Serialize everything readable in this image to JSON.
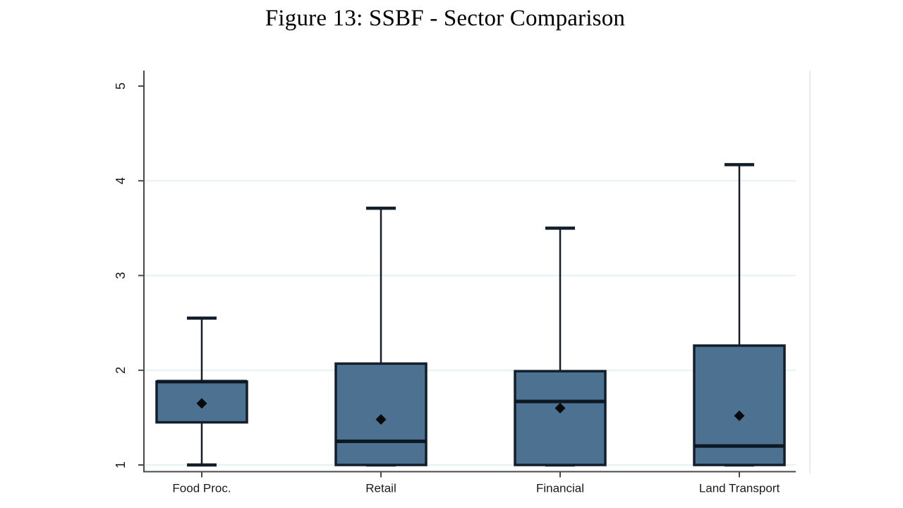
{
  "figure": {
    "title": "Figure 13: SSBF - Sector Comparison"
  },
  "chart_data": {
    "type": "box",
    "title": "Figure 13: SSBF - Sector Comparison",
    "categories": [
      "Food Proc.",
      "Retail",
      "Financial",
      "Land Transport"
    ],
    "series": [
      {
        "name": "Food Proc.",
        "whisker_low": 1.0,
        "q1": 1.45,
        "median": 1.88,
        "q3": 1.88,
        "whisker_high": 2.55,
        "mean": 1.65
      },
      {
        "name": "Retail",
        "whisker_low": 1.0,
        "q1": 1.0,
        "median": 1.25,
        "q3": 2.07,
        "whisker_high": 3.71,
        "mean": 1.48
      },
      {
        "name": "Financial",
        "whisker_low": 1.0,
        "q1": 1.0,
        "median": 1.67,
        "q3": 1.99,
        "whisker_high": 3.5,
        "mean": 1.6
      },
      {
        "name": "Land Transport",
        "whisker_low": 1.0,
        "q1": 1.0,
        "median": 1.2,
        "q3": 2.26,
        "whisker_high": 4.17,
        "mean": 1.52
      }
    ],
    "y_ticks": [
      1,
      2,
      3,
      4,
      5
    ],
    "gridline_values": [
      1,
      2,
      3,
      4
    ],
    "ylim": [
      1,
      5
    ],
    "xlabel": "",
    "ylabel": "",
    "legend": "none",
    "grid": "horizontal",
    "mean_marker_shape": "diamond",
    "colors": {
      "box_fill": "#4d7191",
      "box_line": "#121f2b",
      "median_line": "#0d1822",
      "mean_marker": "#0a0a0a",
      "gridline": "#e7f1f2",
      "axis": "#4a4a4a",
      "tick_label": "#1a1a1a",
      "title": "#000000",
      "plot_border": "#e3e3e3",
      "background": "#ffffff"
    }
  }
}
